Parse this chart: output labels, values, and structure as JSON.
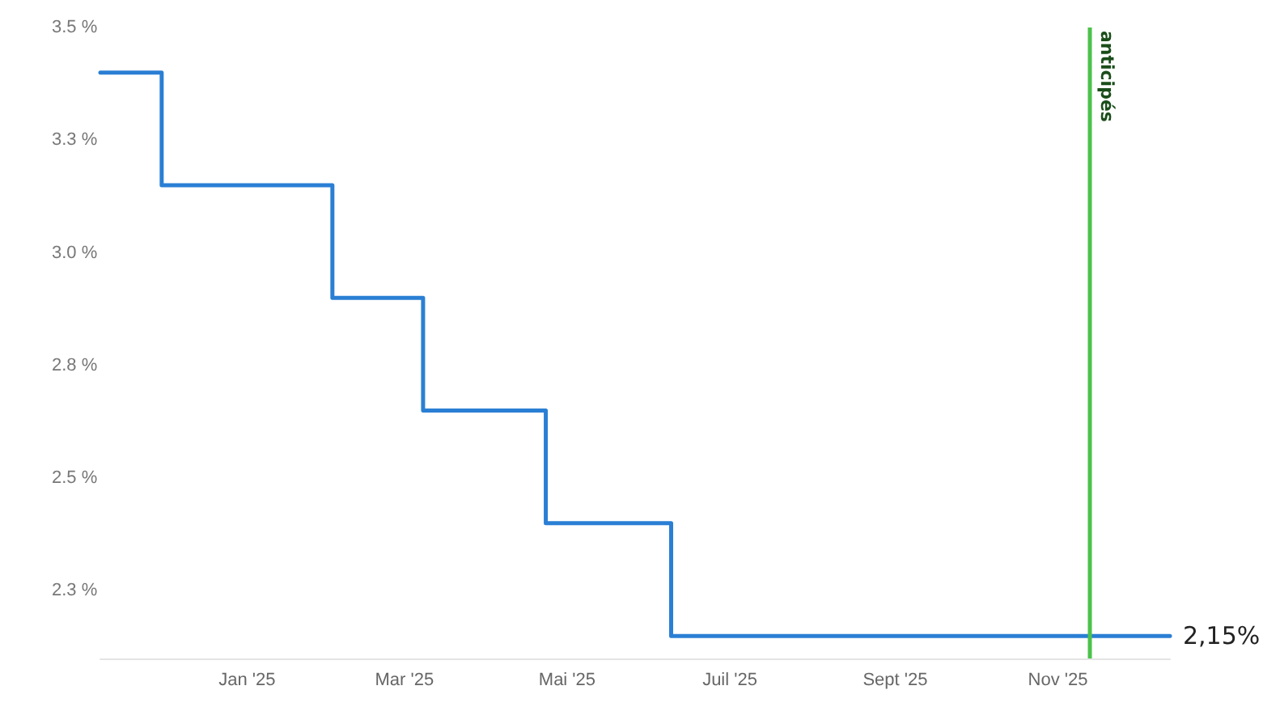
{
  "chart_data": {
    "type": "step",
    "x": [
      "2024-11-07",
      "2024-11-30",
      "2025-02-02",
      "2025-03-08",
      "2025-04-23",
      "2025-06-09",
      "2025-12-13"
    ],
    "series": [
      {
        "color": "#2a7fd4",
        "values": [
          3.4,
          3.15,
          2.9,
          2.65,
          2.4,
          2.15,
          2.15
        ],
        "value_labels": [
          null,
          null,
          null,
          null,
          null,
          null,
          "2,15%"
        ]
      }
    ],
    "xlim": [
      "2024-11-07",
      "2025-12-13"
    ],
    "xticks": [
      {
        "value": "2025-01-01",
        "label": "Jan '25"
      },
      {
        "value": "2025-03-01",
        "label": "Mar '25"
      },
      {
        "value": "2025-05-01",
        "label": "Mai '25"
      },
      {
        "value": "2025-07-01",
        "label": "Juil '25"
      },
      {
        "value": "2025-09-01",
        "label": "Sept '25"
      },
      {
        "value": "2025-11-01",
        "label": "Nov '25"
      }
    ],
    "ylim": [
      2.1,
      3.5
    ],
    "yticks": [
      {
        "value": 2.25,
        "label": "2.3 %"
      },
      {
        "value": 2.5,
        "label": "2.5 %"
      },
      {
        "value": 2.75,
        "label": "2.8 %"
      },
      {
        "value": 3.0,
        "label": "3.0 %"
      },
      {
        "value": 3.25,
        "label": "3.3 %"
      },
      {
        "value": 3.5,
        "label": "3.5 %"
      }
    ],
    "ref_lines": [
      {
        "axis": "x",
        "value": "2025-11-13",
        "label": "anticipés",
        "color": "#4cc24c"
      }
    ],
    "grid": false,
    "marker": "none",
    "line_style": "solid"
  }
}
